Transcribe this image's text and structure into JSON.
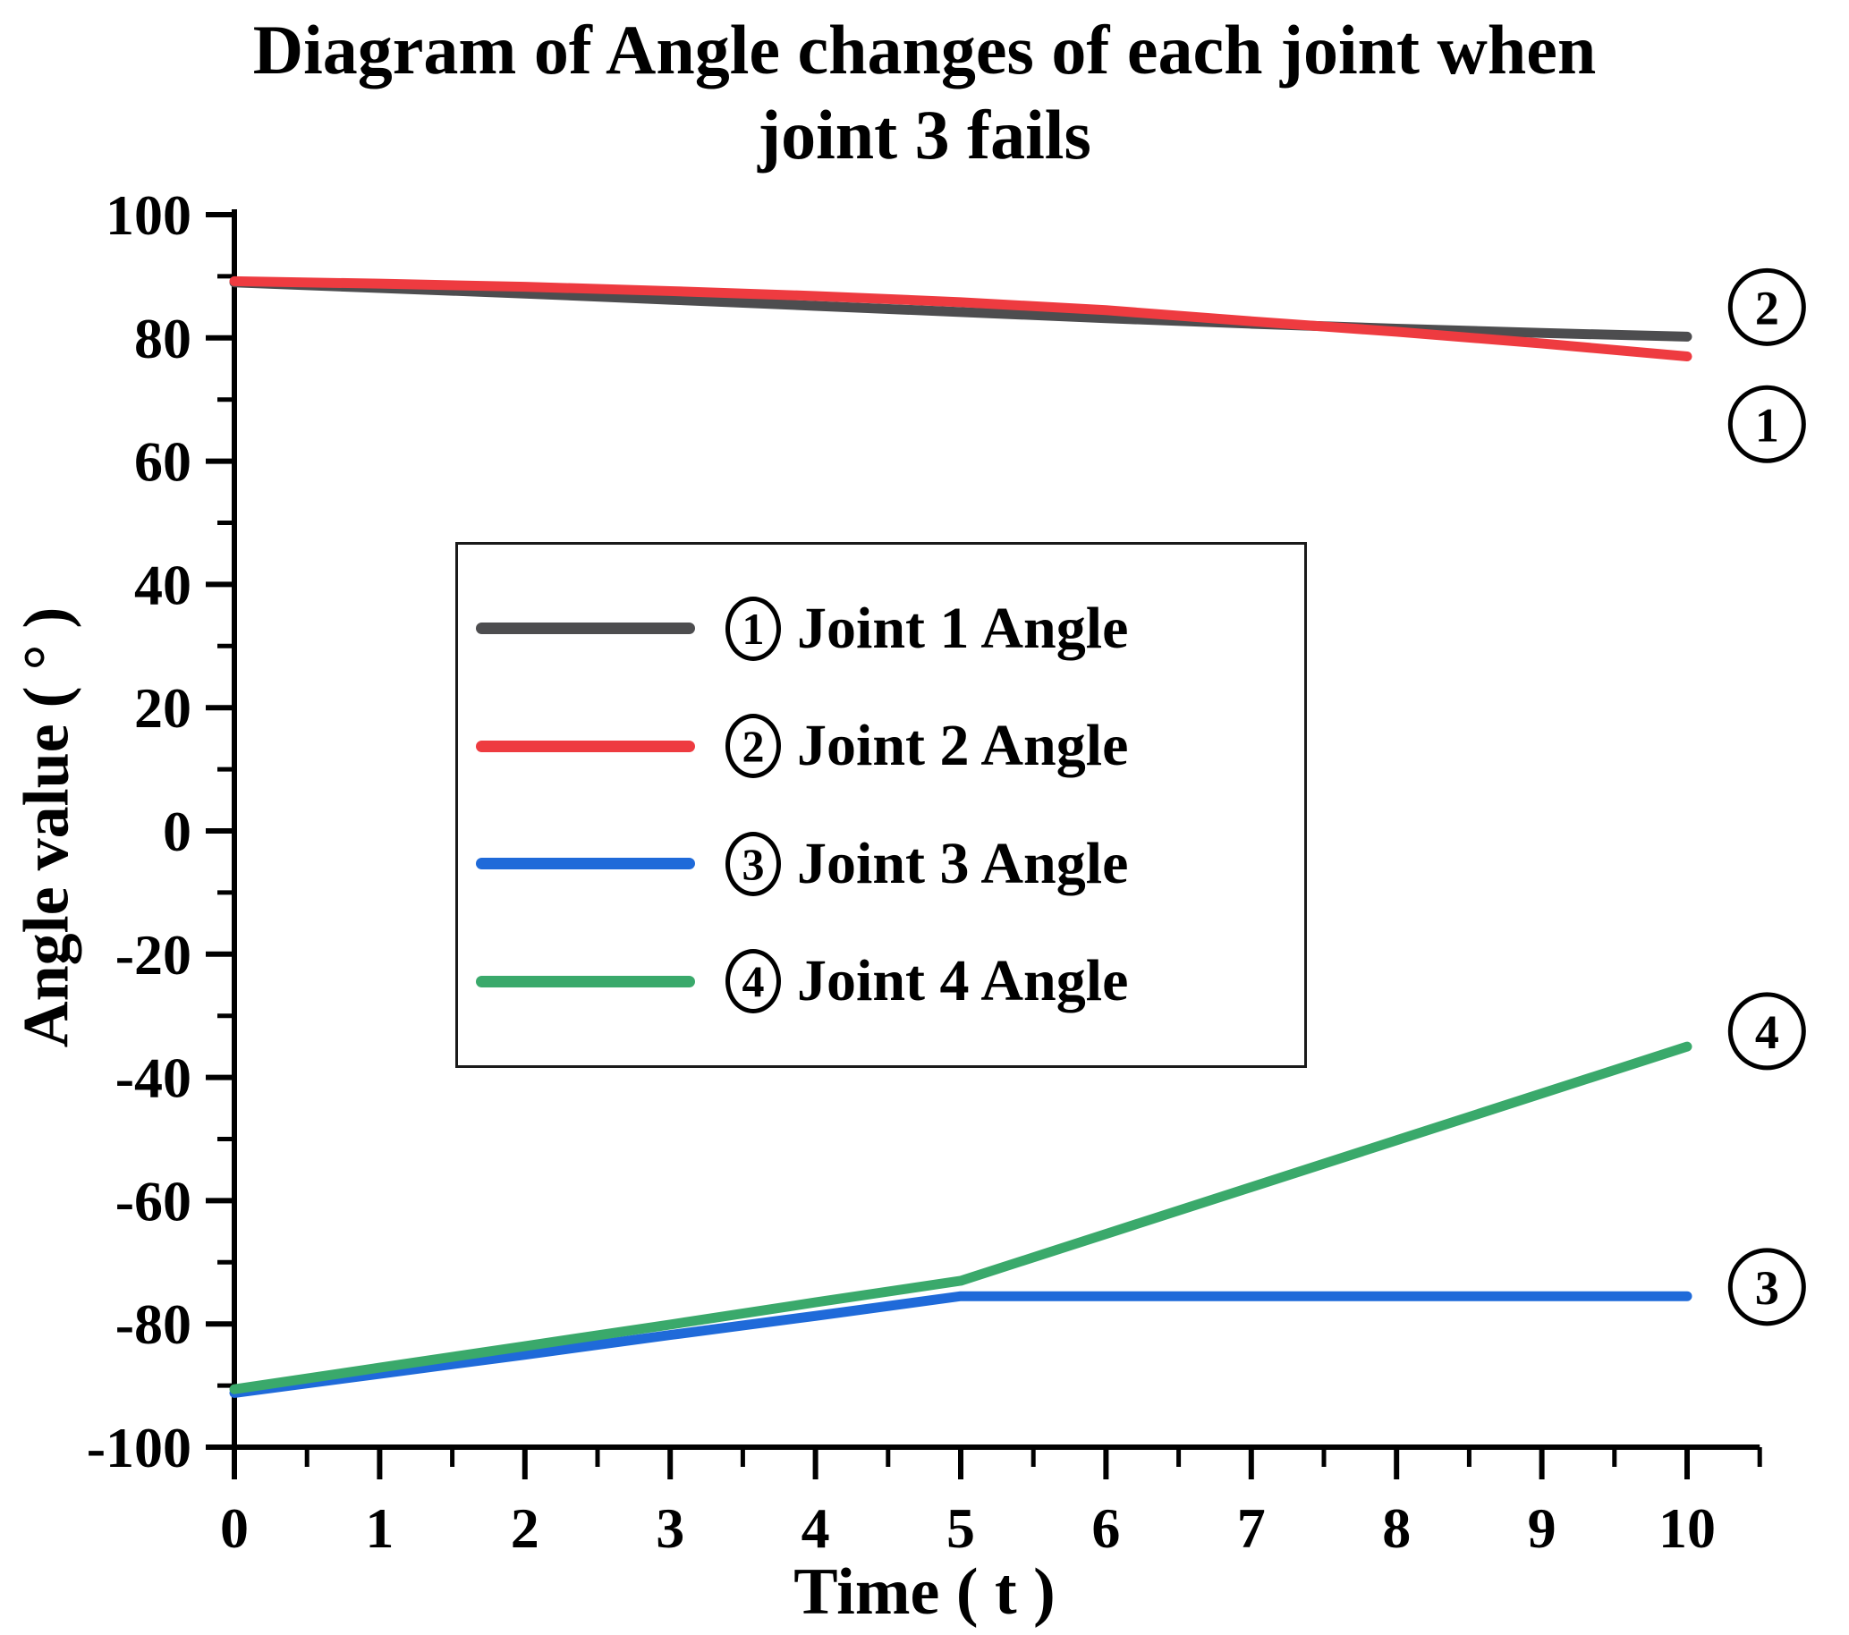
{
  "title": {
    "line1": "Diagram of Angle changes of each joint when",
    "line2": "joint 3 fails"
  },
  "axes": {
    "x": {
      "label": "Time ( t )"
    },
    "y": {
      "label": "Angle value ( ° )"
    }
  },
  "legend": {
    "items": [
      {
        "num": "1",
        "label": "Joint 1 Angle"
      },
      {
        "num": "2",
        "label": "Joint 2 Angle"
      },
      {
        "num": "3",
        "label": "Joint 3 Angle"
      },
      {
        "num": "4",
        "label": "Joint 4 Angle"
      }
    ]
  },
  "chart_data": {
    "type": "line",
    "title": "Diagram of Angle changes of each joint when joint 3 fails",
    "xlabel": "Time (t)",
    "ylabel": "Angle value (°)",
    "xlim": [
      0,
      10
    ],
    "ylim": [
      -100,
      100
    ],
    "grid": false,
    "legend_position": "inside upper-center-left",
    "x": [
      0,
      1,
      2,
      3,
      4,
      5,
      6,
      7,
      8,
      9,
      10
    ],
    "x_major_ticks": [
      0,
      1,
      2,
      3,
      4,
      5,
      6,
      7,
      8,
      9,
      10
    ],
    "x_minor_ticks": [
      0.5,
      1.5,
      2.5,
      3.5,
      4.5,
      5.5,
      6.5,
      7.5,
      8.5,
      9.5,
      10.5
    ],
    "y_major_ticks": [
      100,
      80,
      60,
      40,
      20,
      0,
      -20,
      -40,
      -60,
      -80,
      -100
    ],
    "y_minor_ticks": [
      90,
      70,
      50,
      30,
      10,
      -10,
      -30,
      -50,
      -70,
      -90
    ],
    "series": [
      {
        "name": "Joint 1 Angle",
        "marker_num": "1",
        "color": "#4d4d4f",
        "values": [
          89.0,
          88.1,
          87.2,
          86.2,
          85.2,
          84.2,
          83.2,
          82.3,
          81.5,
          80.8,
          80.2
        ]
      },
      {
        "name": "Joint 2 Angle",
        "marker_num": "2",
        "color": "#ee3b40",
        "values": [
          89.2,
          88.8,
          88.3,
          87.6,
          86.8,
          85.8,
          84.5,
          82.7,
          81.0,
          79.1,
          77.0
        ]
      },
      {
        "name": "Joint 3 Angle",
        "marker_num": "3",
        "color": "#1f6ad9",
        "values": [
          -91.2,
          -88.1,
          -85.0,
          -81.8,
          -78.7,
          -75.5,
          -75.5,
          -75.5,
          -75.5,
          -75.5,
          -75.5
        ]
      },
      {
        "name": "Joint 4 Angle",
        "marker_num": "4",
        "color": "#3aa96b",
        "values": [
          -90.6,
          -87.1,
          -83.6,
          -80.1,
          -76.5,
          -73.0,
          -65.4,
          -57.8,
          -50.2,
          -42.6,
          -35.0
        ]
      }
    ],
    "annotations": [
      {
        "num": "2",
        "x": 10.55,
        "y": 85.0
      },
      {
        "num": "1",
        "x": 10.55,
        "y": 66.0
      },
      {
        "num": "4",
        "x": 10.55,
        "y": -32.5
      },
      {
        "num": "3",
        "x": 10.55,
        "y": -74.0
      }
    ]
  }
}
